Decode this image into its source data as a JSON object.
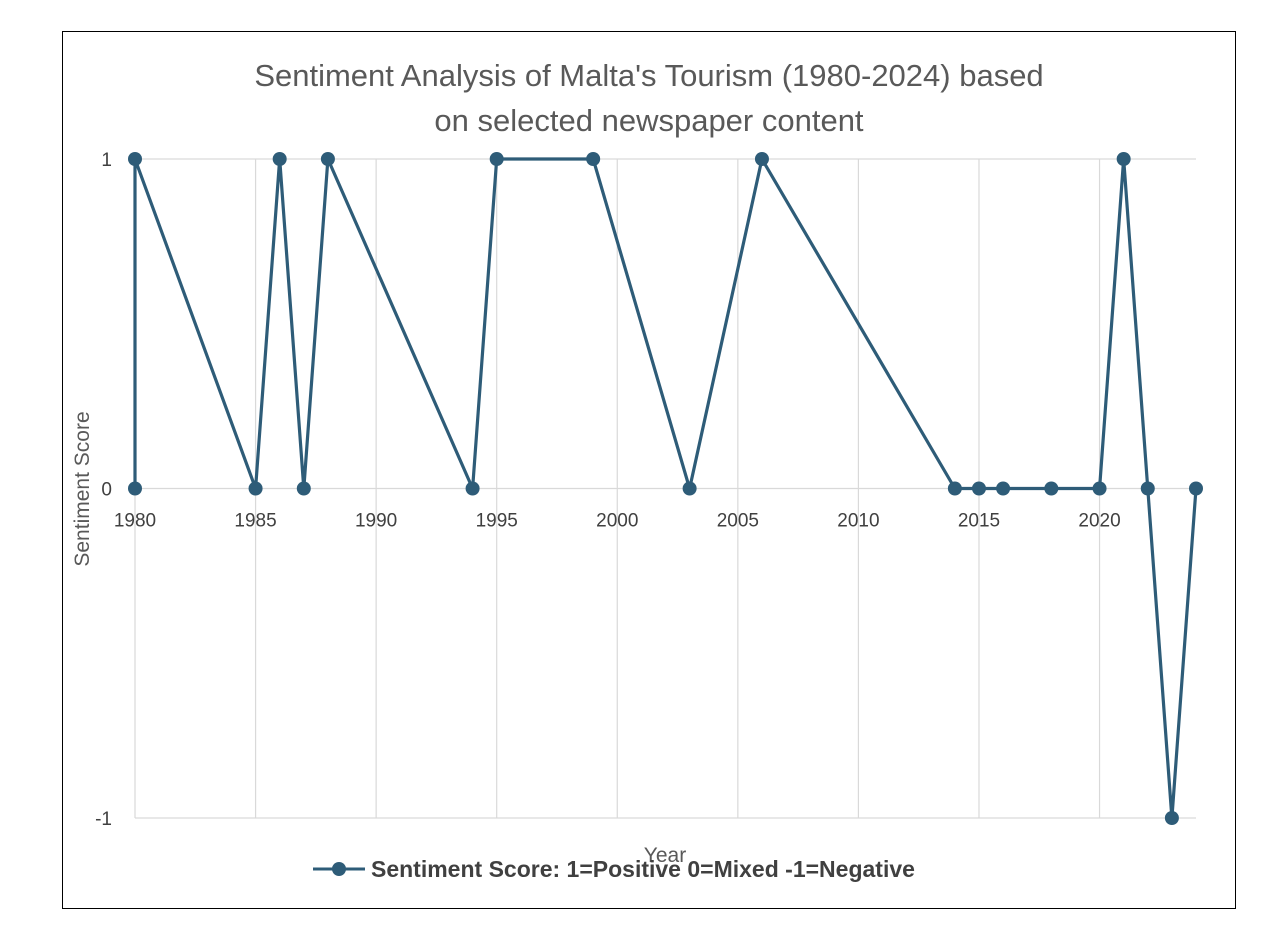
{
  "chart_data": {
    "type": "line",
    "title": "Sentiment Analysis of Malta's Tourism (1980-2024) based on selected newspaper content",
    "title_lines": [
      "Sentiment Analysis of Malta's Tourism (1980-2024) based",
      "on selected newspaper content"
    ],
    "xlabel": "Year",
    "ylabel": "Sentiment Score",
    "xlim": [
      1980,
      2024
    ],
    "ylim": [
      -1,
      1
    ],
    "x_ticks": [
      1980,
      1985,
      1990,
      1995,
      2000,
      2005,
      2010,
      2015,
      2020
    ],
    "y_ticks": [
      -1,
      0,
      1
    ],
    "grid": true,
    "legend_position": "bottom",
    "series": [
      {
        "name": "Sentiment Score: 1=Positive 0=Mixed -1=Negative",
        "color": "#2E5C78",
        "points": [
          {
            "x": 1980,
            "y": 0
          },
          {
            "x": 1980,
            "y": 1
          },
          {
            "x": 1985,
            "y": 0
          },
          {
            "x": 1986,
            "y": 1
          },
          {
            "x": 1987,
            "y": 0
          },
          {
            "x": 1988,
            "y": 1
          },
          {
            "x": 1994,
            "y": 0
          },
          {
            "x": 1995,
            "y": 1
          },
          {
            "x": 1999,
            "y": 1
          },
          {
            "x": 2003,
            "y": 0
          },
          {
            "x": 2006,
            "y": 1
          },
          {
            "x": 2014,
            "y": 0
          },
          {
            "x": 2015,
            "y": 0
          },
          {
            "x": 2016,
            "y": 0
          },
          {
            "x": 2018,
            "y": 0
          },
          {
            "x": 2020,
            "y": 0
          },
          {
            "x": 2021,
            "y": 1
          },
          {
            "x": 2022,
            "y": 0
          },
          {
            "x": 2023,
            "y": -1
          },
          {
            "x": 2024,
            "y": 0
          }
        ]
      }
    ]
  }
}
